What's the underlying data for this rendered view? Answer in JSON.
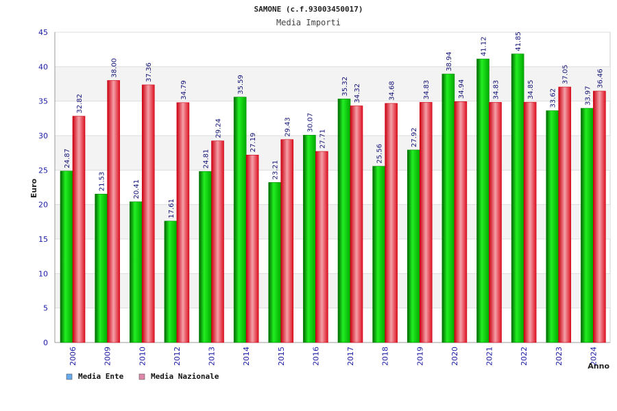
{
  "chart_data": {
    "type": "bar",
    "title": "SAMONE (c.f.93003450017)",
    "subtitle": "Media Importi",
    "xlabel": "Anno",
    "ylabel": "Euro",
    "ylim": [
      0,
      45
    ],
    "yticks": [
      0,
      5,
      10,
      15,
      20,
      25,
      30,
      35,
      40,
      45
    ],
    "grid": true,
    "legend_position": "bottom-left",
    "categories": [
      "2006",
      "2009",
      "2010",
      "2012",
      "2013",
      "2014",
      "2015",
      "2016",
      "2017",
      "2018",
      "2019",
      "2020",
      "2021",
      "2022",
      "2023",
      "2024"
    ],
    "series": [
      {
        "name": "Media Ente",
        "color": "#00bb00",
        "legend_color": "#66aaee",
        "values": [
          24.87,
          21.53,
          20.41,
          17.61,
          24.81,
          35.59,
          23.21,
          30.07,
          35.32,
          25.56,
          27.92,
          38.94,
          41.12,
          41.85,
          33.62,
          33.97
        ],
        "labels": [
          "24.87",
          "21.53",
          "20.41",
          "17.61",
          "24.81",
          "35.59",
          "23.21",
          "30.07",
          "35.32",
          "25.56",
          "27.92",
          "38.94",
          "41.12",
          "41.85",
          "33.62",
          "33.97"
        ]
      },
      {
        "name": "Media Nazionale",
        "color": "#ee2233",
        "legend_color": "#dd88aa",
        "values": [
          32.82,
          38.0,
          37.36,
          34.79,
          29.24,
          27.19,
          29.43,
          27.71,
          34.32,
          34.68,
          34.83,
          34.94,
          34.83,
          34.85,
          37.05,
          36.46
        ],
        "labels": [
          "32.82",
          "38.00",
          "37.36",
          "34.79",
          "29.24",
          "27.19",
          "29.43",
          "27.71",
          "34.32",
          "34.68",
          "34.83",
          "34.94",
          "34.83",
          "34.85",
          "37.05",
          "36.46"
        ]
      }
    ]
  }
}
